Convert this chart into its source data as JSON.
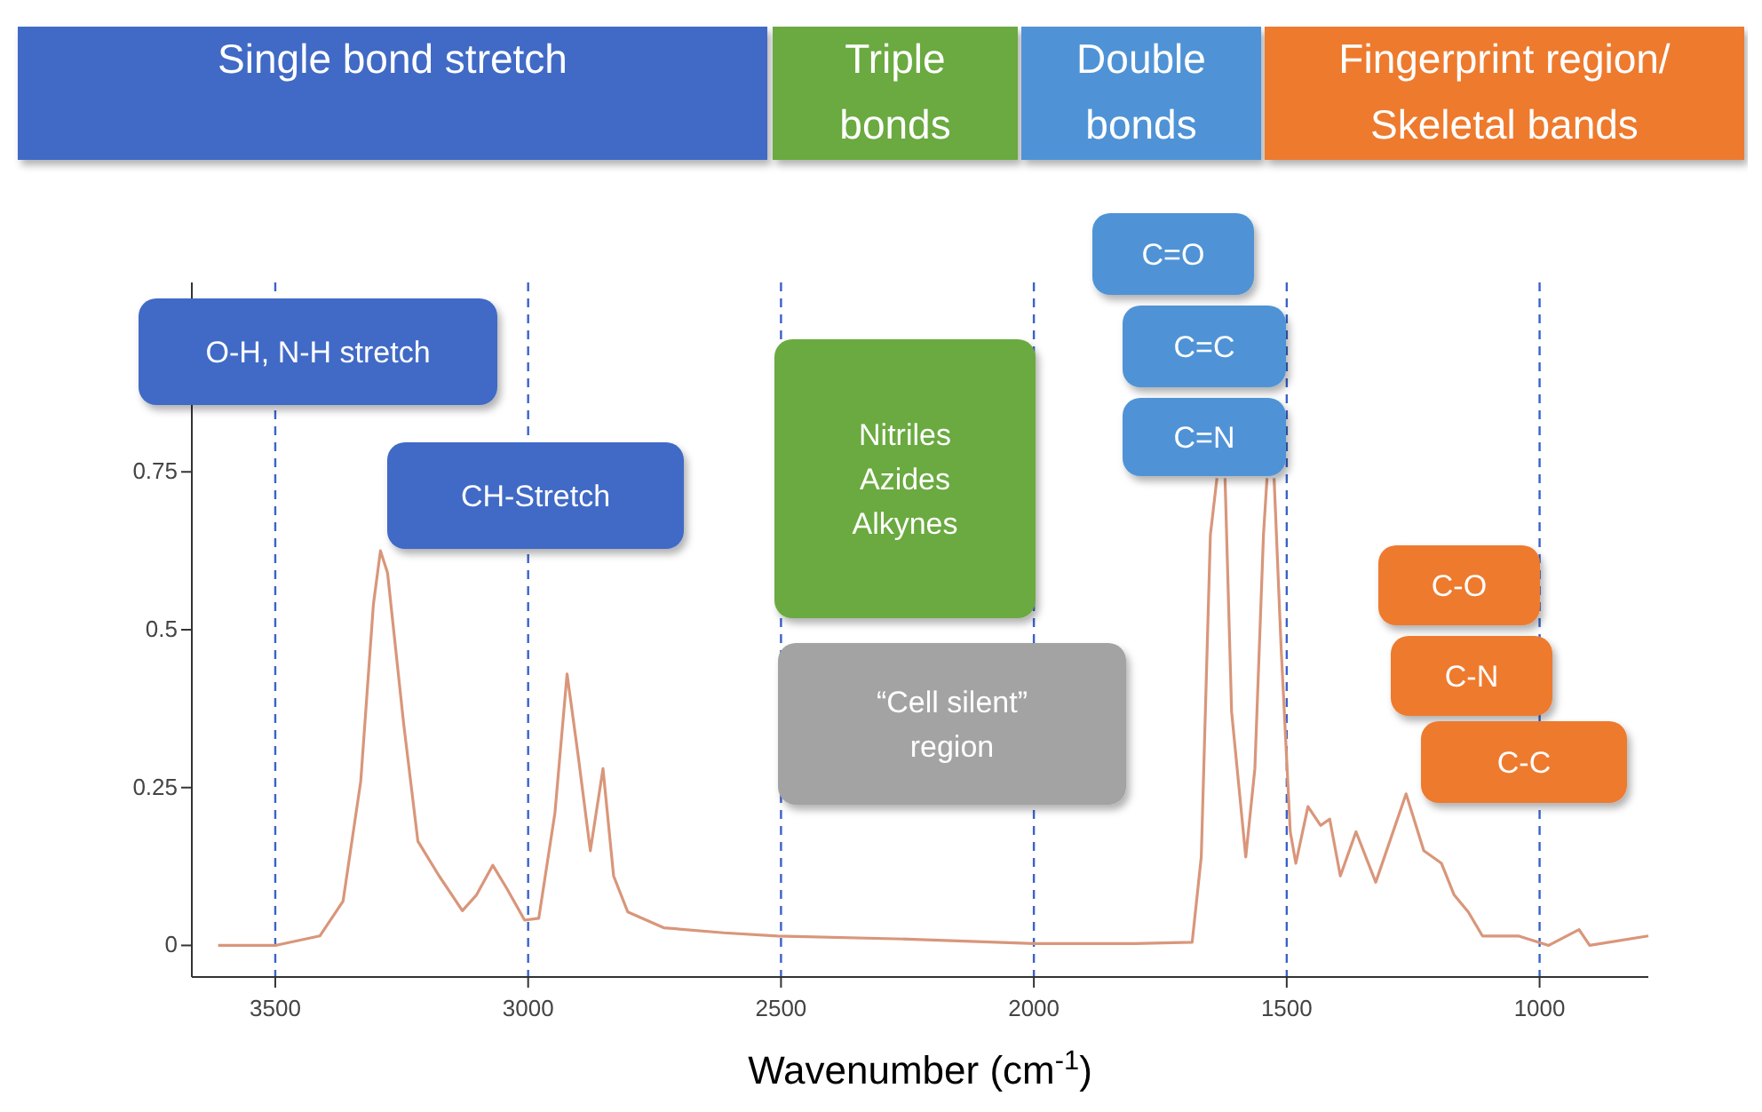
{
  "chart_data": {
    "type": "line",
    "xlabel": "Wavenumber (cm$^{-1}$)",
    "xlim": [
      3665,
      785
    ],
    "ylim": [
      -0.05,
      1.05
    ],
    "xticks": [
      3500,
      3000,
      2500,
      2000,
      1500,
      1000
    ],
    "yticks": [
      0,
      0.25,
      0.5,
      0.75
    ],
    "grid": false,
    "marker": "none",
    "line_style": "solid",
    "series": [
      {
        "color": "#d9967a",
        "x": [
          3613,
          3500,
          3412,
          3366,
          3331,
          3306,
          3292,
          3278,
          3246,
          3218,
          3176,
          3130,
          3102,
          3070,
          3042,
          3007,
          2979,
          2947,
          2923,
          2901,
          2877,
          2852,
          2831,
          2803,
          2732,
          2613,
          2507,
          2250,
          2000,
          1800,
          1687,
          1669,
          1651,
          1638,
          1630,
          1622,
          1609,
          1581,
          1563,
          1546,
          1539,
          1532,
          1525,
          1511,
          1493,
          1482,
          1458,
          1433,
          1415,
          1394,
          1363,
          1324,
          1264,
          1229,
          1194,
          1169,
          1141,
          1113,
          1042,
          982,
          922,
          901,
          785
        ],
        "values": [
          0,
          0,
          0.015,
          0.07,
          0.26,
          0.54,
          0.625,
          0.59,
          0.35,
          0.165,
          0.11,
          0.055,
          0.08,
          0.127,
          0.09,
          0.04,
          0.043,
          0.21,
          0.43,
          0.3,
          0.15,
          0.28,
          0.11,
          0.053,
          0.028,
          0.02,
          0.015,
          0.01,
          0.003,
          0.003,
          0.005,
          0.14,
          0.65,
          0.74,
          null,
          0.74,
          0.37,
          0.14,
          0.28,
          0.65,
          0.74,
          null,
          0.74,
          0.47,
          0.18,
          0.13,
          0.22,
          0.19,
          0.2,
          0.11,
          0.18,
          0.1,
          0.24,
          0.15,
          0.13,
          0.08,
          0.053,
          0.015,
          0.015,
          0,
          0.025,
          0,
          0.015
        ]
      }
    ],
    "ref_lines": [
      {
        "axis": "x",
        "value": 3500,
        "color": "#3a62c9",
        "line_style": "dashed"
      },
      {
        "axis": "x",
        "value": 3000,
        "color": "#3a62c9",
        "line_style": "dashed"
      },
      {
        "axis": "x",
        "value": 2500,
        "color": "#3a62c9",
        "line_style": "dashed"
      },
      {
        "axis": "x",
        "value": 2000,
        "color": "#3a62c9",
        "line_style": "dashed"
      },
      {
        "axis": "x",
        "value": 1500,
        "color": "#3a62c9",
        "line_style": "dashed"
      },
      {
        "axis": "x",
        "value": 1000,
        "color": "#3a62c9",
        "line_style": "dashed"
      }
    ],
    "annotations": [
      "Single bond stretch",
      "Triple\nbonds",
      "Double\nbonds",
      "Fingerprint region/\nSkeletal bands",
      "O-H, N-H stretch",
      "CH-Stretch",
      "Nitriles\nAzides\nAlkynes",
      "“Cell silent”\nregion",
      "C=O",
      "C=C",
      "C=N",
      "C-O",
      "C-N",
      "C-C"
    ]
  }
}
